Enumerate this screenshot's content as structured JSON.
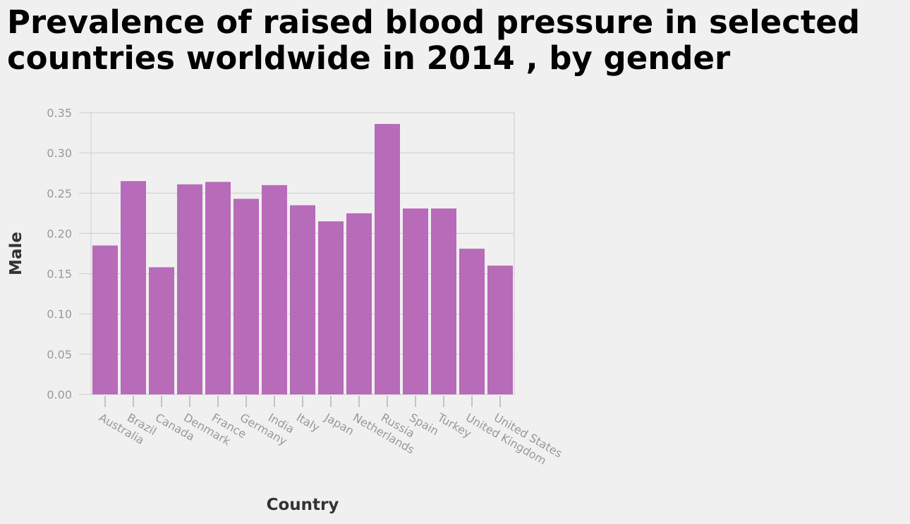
{
  "chart_data": {
    "type": "bar",
    "title": "Prevalence of raised blood pressure in selected countries worldwide in 2014 , by gender",
    "xlabel": "Country",
    "ylabel": "Male",
    "categories": [
      "Australia",
      "Brazil",
      "Canada",
      "Denmark",
      "France",
      "Germany",
      "India",
      "Italy",
      "Japan",
      "Netherlands",
      "Russia",
      "Spain",
      "Turkey",
      "United Kingdom",
      "United States"
    ],
    "series": [
      {
        "values": [
          0.185,
          0.265,
          0.158,
          0.261,
          0.264,
          0.243,
          0.26,
          0.235,
          0.215,
          0.225,
          0.336,
          0.231,
          0.231,
          0.181,
          0.16
        ]
      }
    ],
    "ylim": [
      0,
      0.35
    ],
    "yticks": [
      "0.00",
      "0.05",
      "0.10",
      "0.15",
      "0.20",
      "0.25",
      "0.30",
      "0.35"
    ],
    "grid": true,
    "colors": {
      "bar": "#b76bb8",
      "grid": "#cccccc",
      "background": "#f0f0f0"
    }
  }
}
